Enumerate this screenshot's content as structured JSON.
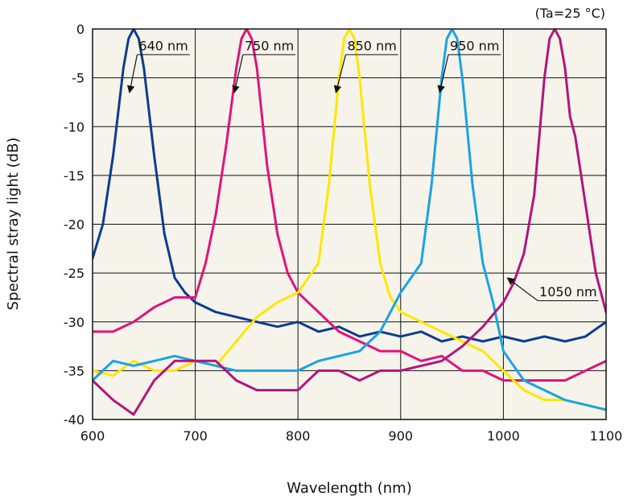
{
  "chart_data": {
    "type": "line",
    "condition": "(Ta=25 °C)",
    "xlabel": "Wavelength (nm)",
    "ylabel": "Spectral stray light (dB)",
    "xlim": [
      600,
      1100
    ],
    "ylim": [
      -40,
      0
    ],
    "xticks": [
      600,
      700,
      800,
      900,
      1000,
      1100
    ],
    "yticks": [
      0,
      -5,
      -10,
      -15,
      -20,
      -25,
      -30,
      -35,
      -40
    ],
    "grid": true,
    "plot_background": "#f5f3ea",
    "series": [
      {
        "name": "640 nm",
        "color": "#0a3d8f",
        "peak": 640,
        "x": [
          600,
          610,
          620,
          630,
          635,
          640,
          645,
          650,
          660,
          670,
          680,
          690,
          700,
          720,
          740,
          760,
          780,
          800,
          820,
          840,
          860,
          880,
          900,
          920,
          940,
          960,
          980,
          1000,
          1020,
          1040,
          1060,
          1080,
          1100
        ],
        "y": [
          -23.5,
          -20,
          -13,
          -4,
          -1,
          0,
          -1,
          -4,
          -13,
          -21,
          -25.5,
          -27,
          -28,
          -29,
          -29.5,
          -30,
          -30.5,
          -30,
          -31,
          -30.5,
          -31.5,
          -31,
          -31.5,
          -31,
          -32,
          -31.5,
          -32,
          -31.5,
          -32,
          -31.5,
          -32,
          -31.5,
          -30
        ]
      },
      {
        "name": "750 nm",
        "color": "#e0137c",
        "peak": 750,
        "x": [
          600,
          620,
          640,
          660,
          680,
          700,
          710,
          720,
          730,
          740,
          745,
          750,
          755,
          760,
          770,
          780,
          790,
          800,
          820,
          840,
          860,
          880,
          900,
          920,
          940,
          960,
          980,
          1000,
          1020,
          1040,
          1060,
          1080,
          1100
        ],
        "y": [
          -31,
          -31,
          -30,
          -28.5,
          -27.5,
          -27.5,
          -24,
          -19,
          -12,
          -4,
          -1,
          0,
          -1,
          -4,
          -14,
          -21,
          -25,
          -27,
          -29,
          -31,
          -32,
          -33,
          -33,
          -34,
          -33.5,
          -35,
          -35,
          -36,
          -36,
          -36,
          -36,
          -35,
          -34
        ]
      },
      {
        "name": "850 nm",
        "color": "#ffe600",
        "peak": 850,
        "x": [
          600,
          620,
          640,
          660,
          680,
          700,
          720,
          740,
          760,
          780,
          800,
          820,
          830,
          840,
          845,
          850,
          855,
          860,
          870,
          880,
          890,
          900,
          920,
          940,
          960,
          980,
          1000,
          1020,
          1040,
          1060,
          1080,
          1100
        ],
        "y": [
          -35,
          -35.5,
          -34,
          -35,
          -35,
          -34,
          -34.5,
          -32,
          -29.5,
          -28,
          -27,
          -24,
          -16,
          -5,
          -1,
          0,
          -1,
          -5,
          -16,
          -24,
          -27.5,
          -29,
          -30,
          -31,
          -32,
          -33,
          -35,
          -37,
          -38,
          -38,
          -38.5,
          -39
        ]
      },
      {
        "name": "950 nm",
        "color": "#1aa3e0",
        "peak": 950,
        "x": [
          600,
          620,
          640,
          660,
          680,
          700,
          720,
          740,
          760,
          780,
          800,
          820,
          840,
          860,
          880,
          900,
          920,
          930,
          940,
          945,
          950,
          955,
          960,
          970,
          980,
          990,
          1000,
          1020,
          1040,
          1060,
          1080,
          1100
        ],
        "y": [
          -36,
          -34,
          -34.5,
          -34,
          -33.5,
          -34,
          -34.5,
          -35,
          -35,
          -35,
          -35,
          -34,
          -33.5,
          -33,
          -31,
          -27,
          -24,
          -16,
          -5,
          -1,
          0,
          -1,
          -5,
          -16,
          -24,
          -28,
          -33,
          -36,
          -37,
          -38,
          -38.5,
          -39
        ]
      },
      {
        "name": "1050 nm",
        "color": "#b0157f",
        "peak": 1050,
        "x": [
          600,
          620,
          640,
          660,
          680,
          700,
          720,
          740,
          760,
          780,
          800,
          820,
          840,
          860,
          880,
          900,
          920,
          940,
          960,
          980,
          1000,
          1010,
          1020,
          1030,
          1040,
          1045,
          1050,
          1055,
          1060,
          1065,
          1070,
          1080,
          1090,
          1100
        ],
        "y": [
          -36,
          -38,
          -39.5,
          -36,
          -34,
          -34,
          -34,
          -36,
          -37,
          -37,
          -37,
          -35,
          -35,
          -36,
          -35,
          -35,
          -34.5,
          -34,
          -32.5,
          -30.5,
          -28,
          -26,
          -23,
          -17,
          -5,
          -1,
          0,
          -1,
          -4,
          -9,
          -11,
          -18,
          -25,
          -29
        ]
      }
    ],
    "annotations": [
      {
        "label": "640 nm",
        "series": "640 nm",
        "text_x": 645,
        "text_y": -2.2,
        "x1": 645,
        "y1": -2.3,
        "x2": 630,
        "y2": -2.3,
        "ax1": 650,
        "ay1": -2.3,
        "ax2": 636,
        "ay2": -6.5
      },
      {
        "label": "750 nm",
        "series": "750 nm",
        "text_x": 748,
        "text_y": -2.2,
        "x1": 747,
        "y1": -2.3,
        "x2": 732,
        "y2": -2.3,
        "ax1": 751,
        "ay1": -2.3,
        "ax2": 738,
        "ay2": -6.5
      },
      {
        "label": "850 nm",
        "series": "850 nm",
        "text_x": 848,
        "text_y": -2.2,
        "x1": 847,
        "y1": -2.3,
        "x2": 832,
        "y2": -2.3,
        "ax1": 851,
        "ay1": -2.3,
        "ax2": 837,
        "ay2": -6.5
      },
      {
        "label": "950 nm",
        "series": "950 nm",
        "text_x": 948,
        "text_y": -2.2,
        "x1": 947,
        "y1": -2.3,
        "x2": 932,
        "y2": -2.3,
        "ax1": 951,
        "ay1": -2.3,
        "ax2": 938,
        "ay2": -6.5
      },
      {
        "label": "1050 nm",
        "series": "1050 nm",
        "text_x": 1035,
        "text_y": -27.4,
        "x1": 1035,
        "y1": -27.5,
        "x2": 1020,
        "y2": -27.5,
        "ax1": 1018,
        "ay1": -27.5,
        "ax2": 1004,
        "ay2": -25.5
      }
    ]
  }
}
